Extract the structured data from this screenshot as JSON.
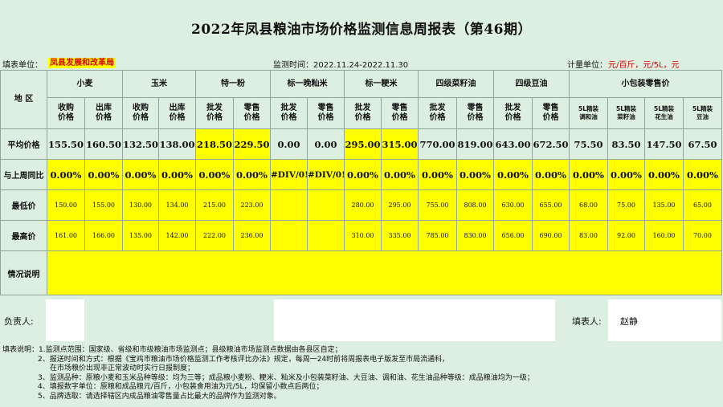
{
  "title": "2022年凤县粮油市场价格监测信息周报表（第46期）",
  "meta": {
    "unit_label": "填表单位：",
    "unit_value": "凤县发展和改革局",
    "period": "监测时间：2022.11.24-2022.11.30",
    "measure_label": "计量单位：",
    "measure_value": "元/百斤，元/5L，元"
  },
  "header": {
    "region": "地  区",
    "groups": [
      "小麦",
      "玉米",
      "特一粉",
      "标一晚籼米",
      "标一粳米",
      "四级菜籽油",
      "四级豆油",
      "小包装零售价"
    ],
    "subs": [
      "收购价格",
      "出库价格",
      "收购价格",
      "出库价格",
      "批发价格",
      "零售价格",
      "批发价格",
      "零售价格",
      "批发价格",
      "零售价格",
      "批发价格",
      "零售价格",
      "批发价格",
      "零售价格",
      "5L精装调和油",
      "5L精装菜籽油",
      "5L精装花生油",
      "5L精装豆油"
    ]
  },
  "rows": {
    "avg": {
      "label": "平均价格",
      "values": [
        "155.50",
        "160.50",
        "132.50",
        "138.00",
        "218.50",
        "229.50",
        "0.00",
        "0.00",
        "295.00",
        "315.00",
        "770.00",
        "819.00",
        "643.00",
        "672.50",
        "75.50",
        "83.50",
        "147.50",
        "67.50"
      ]
    },
    "pct": {
      "label": "与上周同比",
      "values": [
        "0.00%",
        "0.00%",
        "0.00%",
        "0.00%",
        "0.00%",
        "0.00%",
        "#DIV/0!",
        "#DIV/0!",
        "0.00%",
        "0.00%",
        "0.00%",
        "0.00%",
        "0.00%",
        "0.00%",
        "0.00%",
        "0.00%",
        "0.00%",
        "0.00%"
      ]
    },
    "min": {
      "label": "最低价",
      "values": [
        "150.00",
        "155.00",
        "130.00",
        "134.00",
        "215.00",
        "223.00",
        "",
        "",
        "280.00",
        "295.00",
        "755.00",
        "808.00",
        "630.00",
        "655.00",
        "68.00",
        "75.00",
        "135.00",
        "65.00"
      ]
    },
    "max": {
      "label": "最高价",
      "values": [
        "161.00",
        "166.00",
        "135.00",
        "142.00",
        "222.00",
        "236.00",
        "",
        "",
        "310.00",
        "335.00",
        "785.00",
        "830.00",
        "656.00",
        "690.00",
        "83.00",
        "92.00",
        "160.00",
        "70.00"
      ]
    },
    "note": {
      "label": "情况说明"
    }
  },
  "sign": {
    "responsible_label": "负责人:",
    "filler_label": "填表人:",
    "filler_name": "赵静"
  },
  "notes": [
    "填表说明：1.监测点范围：国家级、省级和市级粮油市场监测点；县级粮油市场监测点数据由各县区自定；",
    "2、报送时间和方式：根据《宝鸡市粮油市场价格监测工作考核评比办法》规定，每周一24时前将周报表电子版发至市局流通科，",
    "在市场粮价出现非正常波动时实行日报制度；",
    "3、监测品种：原粮小麦和玉米品种等级：均为三等；成品粮小麦粉、粳米、籼米及小包装菜籽油、大豆油、调和油、花生油品种等级：成品粮油均为一级；",
    "4、填报数字单位：原粮和成品粮元/百斤，小包装食用油为元/5L，均保留小数点后两位；",
    "5、品牌选取：请选择辖区内成品粮油零售量占比最大的品牌作为监测对象。"
  ],
  "colors": {
    "highlight": "#ffff00",
    "background": "#dcefe0",
    "accent_red": "#d40000"
  }
}
